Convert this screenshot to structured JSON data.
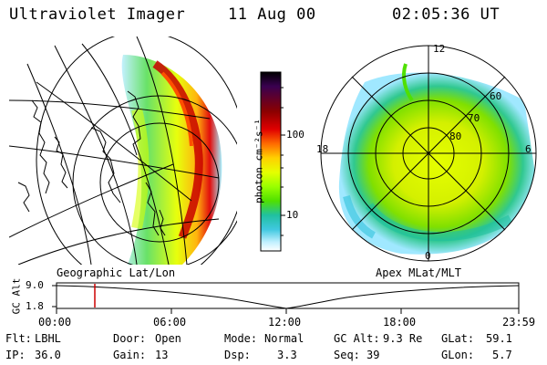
{
  "header": {
    "instrument": "Ultraviolet Imager",
    "date": "11 Aug 00",
    "time": "02:05:36 UT"
  },
  "panels": {
    "left_title": "Geographic Lat/Lon",
    "right_title": "Apex MLat/MLT"
  },
  "colorbar": {
    "unit_label": "photon cm⁻²s⁻¹",
    "ticks": [
      "100",
      "10"
    ],
    "colors": [
      "#000000",
      "#3a0050",
      "#8b0000",
      "#e00000",
      "#ff6a00",
      "#ffd000",
      "#e6ff00",
      "#9aff00",
      "#50e000",
      "#20c0a0",
      "#40c8e0",
      "#c0f0ff",
      "#ffffff"
    ]
  },
  "polar": {
    "mlt_labels": [
      "12",
      "18",
      "6",
      "0"
    ],
    "mlat_labels": [
      "60",
      "70",
      "80"
    ]
  },
  "alt_plot": {
    "ylabel": "GC Alt",
    "yticks": [
      "9.0",
      "1.8"
    ],
    "xticks": [
      "00:00",
      "06:00",
      "12:00",
      "18:00",
      "23:59"
    ],
    "current_time_marker_color": "#cc0000"
  },
  "status": {
    "filter_label": "Flt:",
    "filter_value": "LBHL",
    "door_label": "Door:",
    "door_value": "Open",
    "mode_label": "Mode:",
    "mode_value": "Normal",
    "gcalt_label": "GC Alt:",
    "gcalt_value": "9.3 Re",
    "glat_label": "GLat:",
    "glat_value": "59.1",
    "ip_label": "IP:",
    "ip_value": "36.0",
    "gain_label": "Gain:",
    "gain_value": "13",
    "dsp_label": "Dsp:",
    "dsp_value": "3.3",
    "seq_label": "Seq:",
    "seq_value": "39",
    "glon_label": "GLon:",
    "glon_value": "5.7"
  }
}
